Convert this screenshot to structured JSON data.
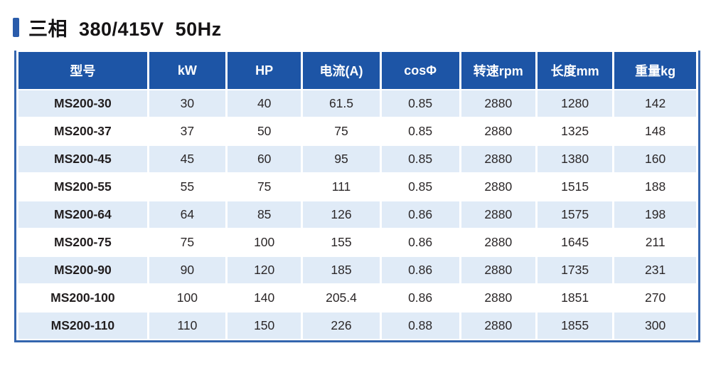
{
  "title": {
    "text": "三相  380/415V  50Hz",
    "accent_color": "#2a5cab"
  },
  "table": {
    "headers": [
      "型号",
      "kW",
      "HP",
      "电流(A)",
      "cosΦ",
      "转速rpm",
      "长度mm",
      "重量kg"
    ],
    "rows": [
      [
        "MS200-30",
        "30",
        "40",
        "61.5",
        "0.85",
        "2880",
        "1280",
        "142"
      ],
      [
        "MS200-37",
        "37",
        "50",
        "75",
        "0.85",
        "2880",
        "1325",
        "148"
      ],
      [
        "MS200-45",
        "45",
        "60",
        "95",
        "0.85",
        "2880",
        "1380",
        "160"
      ],
      [
        "MS200-55",
        "55",
        "75",
        "111",
        "0.85",
        "2880",
        "1515",
        "188"
      ],
      [
        "MS200-64",
        "64",
        "85",
        "126",
        "0.86",
        "2880",
        "1575",
        "198"
      ],
      [
        "MS200-75",
        "75",
        "100",
        "155",
        "0.86",
        "2880",
        "1645",
        "211"
      ],
      [
        "MS200-90",
        "90",
        "120",
        "185",
        "0.86",
        "2880",
        "1735",
        "231"
      ],
      [
        "MS200-100",
        "100",
        "140",
        "205.4",
        "0.86",
        "2880",
        "1851",
        "270"
      ],
      [
        "MS200-110",
        "110",
        "150",
        "226",
        "0.88",
        "2880",
        "1855",
        "300"
      ]
    ],
    "colors": {
      "header_bg": "#1d55a6",
      "header_text": "#ffffff",
      "row_alt_bg": "#e0ebf7",
      "row_bg": "#ffffff",
      "border": "#3465ae",
      "cell_text": "#2b2728"
    }
  }
}
